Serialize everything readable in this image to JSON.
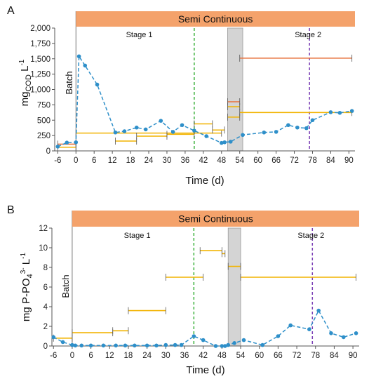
{
  "colors": {
    "banner": "#F4A26B",
    "series": "#2E8FC9",
    "avg_early": "#F2B300",
    "avg_late": "#E8703A",
    "stage1_line": "#3FB23F",
    "stage2_line": "#7A3FB5",
    "shade": "#D4D4D4",
    "error_bar": "#555555"
  },
  "chart_data": [
    {
      "type": "line",
      "panel_label": "A",
      "banner": "Semi Continuous",
      "phase_label": "Batch",
      "stage1_label": "Stage 1",
      "stage2_label": "Stage 2",
      "ylabel": "mgCOD L-1",
      "ylabel_main": "mg",
      "ylabel_sub": "COD",
      "ylabel_tail": " L",
      "ylabel_sup": "-1",
      "xlabel": "Time (d)",
      "xlim": [
        -7,
        92
      ],
      "ylim": [
        0,
        2000
      ],
      "x_ticks": [
        -6,
        0,
        6,
        12,
        18,
        24,
        30,
        36,
        42,
        48,
        54,
        60,
        66,
        72,
        78,
        84,
        90
      ],
      "y_ticks": [
        0,
        250,
        500,
        750,
        1000,
        1250,
        1500,
        1750,
        2000
      ],
      "y_tick_labels": [
        "0",
        "250",
        "500",
        "750",
        "1,000",
        "1,250",
        "1,500",
        "1,750",
        "2,000"
      ],
      "grid": false,
      "batch_line_x": 0,
      "stage1_line_x": 39,
      "stage2_line_x": 77,
      "shaded_interval": [
        50,
        55
      ],
      "series": [
        {
          "x": [
            -6,
            -3,
            0,
            1,
            3,
            7,
            13,
            16,
            20,
            23,
            28,
            32,
            35,
            39,
            43,
            48,
            49,
            51,
            55,
            62,
            66,
            70,
            73,
            76,
            78,
            84,
            87,
            91
          ],
          "y": [
            70,
            135,
            140,
            1540,
            1390,
            1080,
            300,
            320,
            380,
            350,
            490,
            310,
            420,
            330,
            240,
            130,
            140,
            150,
            260,
            300,
            310,
            420,
            380,
            370,
            500,
            630,
            620,
            650
          ]
        }
      ],
      "averages": [
        {
          "x0": -6,
          "x1": 0,
          "y": 110,
          "color": "avg_late"
        },
        {
          "x0": -6,
          "x1": 0,
          "y": 60,
          "color": "avg_early"
        },
        {
          "x0": 0,
          "x1": 48,
          "y": 290,
          "color": "avg_early"
        },
        {
          "x0": 13,
          "x1": 20,
          "y": 160,
          "color": "avg_early"
        },
        {
          "x0": 20,
          "x1": 30,
          "y": 240,
          "color": "avg_early"
        },
        {
          "x0": 30,
          "x1": 39,
          "y": 270,
          "color": "avg_early"
        },
        {
          "x0": 39,
          "x1": 45,
          "y": 440,
          "color": "avg_early"
        },
        {
          "x0": 45,
          "x1": 49,
          "y": 340,
          "color": "avg_early"
        },
        {
          "x0": 50,
          "x1": 54,
          "y": 800,
          "color": "avg_late"
        },
        {
          "x0": 50,
          "x1": 54,
          "y": 720,
          "color": "avg_early"
        },
        {
          "x0": 50,
          "x1": 54,
          "y": 550,
          "color": "avg_early"
        },
        {
          "x0": 54,
          "x1": 91,
          "y": 625,
          "color": "avg_early"
        },
        {
          "x0": 54,
          "x1": 91,
          "y": 1510,
          "color": "avg_late"
        }
      ]
    },
    {
      "type": "line",
      "panel_label": "B",
      "banner": "Semi Continuous",
      "phase_label": "Batch",
      "stage1_label": "Stage 1",
      "stage2_label": "Stage 2",
      "ylabel": "mg P-PO43- L-1",
      "ylabel_main": "mg P-PO",
      "ylabel_sub": "4",
      "ylabel_sup": "3-",
      "ylabel_tail": "  L",
      "ylabel_sup2": "-1",
      "xlabel": "Time (d)",
      "xlim": [
        -6.5,
        92
      ],
      "ylim": [
        0,
        12
      ],
      "x_ticks": [
        -6,
        0,
        6,
        12,
        18,
        24,
        30,
        36,
        42,
        48,
        54,
        60,
        66,
        72,
        78,
        84,
        90
      ],
      "y_ticks": [
        0,
        2,
        4,
        6,
        8,
        10,
        12
      ],
      "y_tick_labels": [
        "0",
        "2",
        "4",
        "6",
        "8",
        "10",
        "12"
      ],
      "grid": false,
      "batch_line_x": 0,
      "stage1_line_x": 39,
      "stage2_line_x": 77,
      "shaded_interval": [
        50,
        54
      ],
      "series": [
        {
          "x": [
            -6,
            -3,
            0,
            1,
            3,
            6,
            10,
            14,
            17,
            20,
            24,
            27,
            30,
            33,
            35,
            39,
            42,
            46,
            48,
            49,
            50,
            52,
            55,
            61,
            66,
            70,
            76,
            79,
            83,
            87,
            91
          ],
          "y": [
            0.9,
            0.4,
            0.1,
            0.05,
            0.05,
            0.05,
            0.05,
            0.05,
            0.05,
            0.05,
            0.05,
            0.05,
            0.1,
            0.1,
            0.1,
            1.0,
            0.6,
            0.0,
            0.0,
            0.0,
            0.1,
            0.3,
            0.6,
            0.1,
            1.0,
            2.1,
            1.7,
            3.6,
            1.3,
            0.9,
            1.3
          ]
        }
      ],
      "averages": [
        {
          "x0": -6,
          "x1": 0,
          "y": 0.8,
          "color": "avg_early"
        },
        {
          "x0": 0,
          "x1": 13,
          "y": 1.35,
          "color": "avg_early"
        },
        {
          "x0": 13,
          "x1": 18,
          "y": 1.55,
          "color": "avg_early"
        },
        {
          "x0": 18,
          "x1": 30,
          "y": 3.6,
          "color": "avg_early"
        },
        {
          "x0": 30,
          "x1": 42,
          "y": 7.0,
          "color": "avg_early"
        },
        {
          "x0": 41,
          "x1": 48,
          "y": 9.7,
          "color": "avg_early"
        },
        {
          "x0": 48,
          "x1": 49,
          "y": 9.4,
          "color": "avg_early"
        },
        {
          "x0": 50,
          "x1": 54,
          "y": 8.1,
          "color": "avg_early"
        },
        {
          "x0": 54,
          "x1": 91,
          "y": 7.0,
          "color": "avg_early"
        }
      ]
    }
  ]
}
